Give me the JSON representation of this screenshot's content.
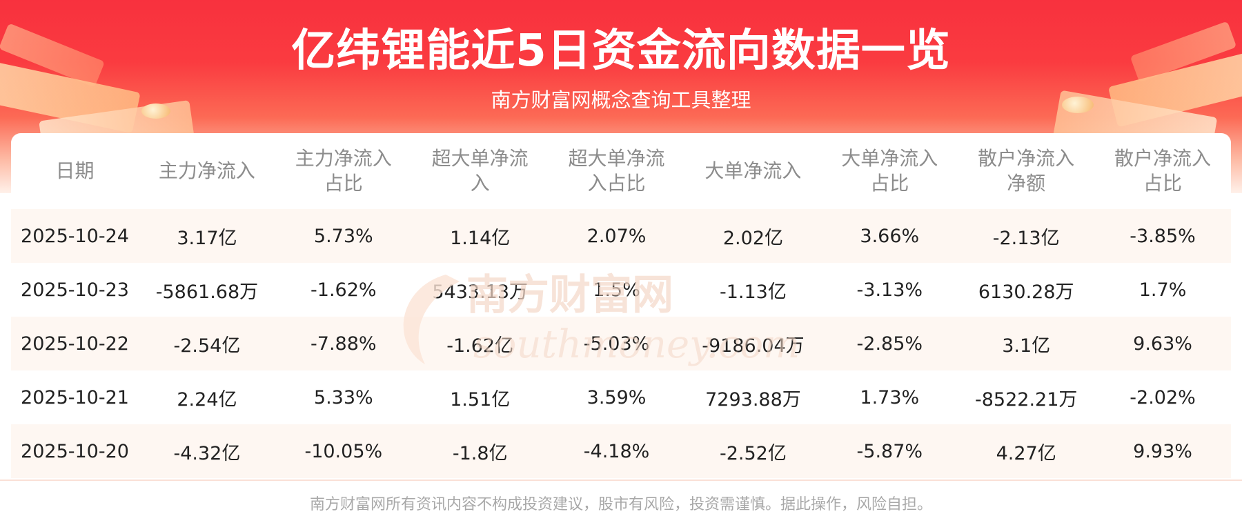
{
  "header": {
    "title": "亿纬锂能近5日资金流向数据一览",
    "subtitle": "南方财富网概念查询工具整理"
  },
  "watermark": {
    "cn": "南方财富网",
    "en": "southmoney.com"
  },
  "table": {
    "columns": [
      {
        "line1": "日期",
        "line2": ""
      },
      {
        "line1": "主力净流入",
        "line2": ""
      },
      {
        "line1": "主力净流入",
        "line2": "占比"
      },
      {
        "line1": "超大单净流",
        "line2": "入"
      },
      {
        "line1": "超大单净流",
        "line2": "入占比"
      },
      {
        "line1": "大单净流入",
        "line2": ""
      },
      {
        "line1": "大单净流入",
        "line2": "占比"
      },
      {
        "line1": "散户净流入",
        "line2": "净额"
      },
      {
        "line1": "散户净流入",
        "line2": "占比"
      }
    ],
    "rows": [
      [
        "2025-10-24",
        "3.17亿",
        "5.73%",
        "1.14亿",
        "2.07%",
        "2.02亿",
        "3.66%",
        "-2.13亿",
        "-3.85%"
      ],
      [
        "2025-10-23",
        "-5861.68万",
        "-1.62%",
        "5433.13万",
        "1.5%",
        "-1.13亿",
        "-3.13%",
        "6130.28万",
        "1.7%"
      ],
      [
        "2025-10-22",
        "-2.54亿",
        "-7.88%",
        "-1.62亿",
        "-5.03%",
        "-9186.04万",
        "-2.85%",
        "3.1亿",
        "9.63%"
      ],
      [
        "2025-10-21",
        "2.24亿",
        "5.33%",
        "1.51亿",
        "3.59%",
        "7293.88万",
        "1.73%",
        "-8522.21万",
        "-2.02%"
      ],
      [
        "2025-10-20",
        "-4.32亿",
        "-10.05%",
        "-1.8亿",
        "-4.18%",
        "-2.52亿",
        "-5.87%",
        "4.27亿",
        "9.93%"
      ]
    ]
  },
  "footer": {
    "disclaimer": "南方财富网所有资讯内容不构成投资建议，股市有风险，投资需谨慎。据此操作，风险自担。"
  },
  "colors": {
    "brand_red": "#f8313e",
    "header_text": "#ffffff",
    "row_stripe": "#fef7f2",
    "header_cell_text": "#8c8c8c"
  }
}
